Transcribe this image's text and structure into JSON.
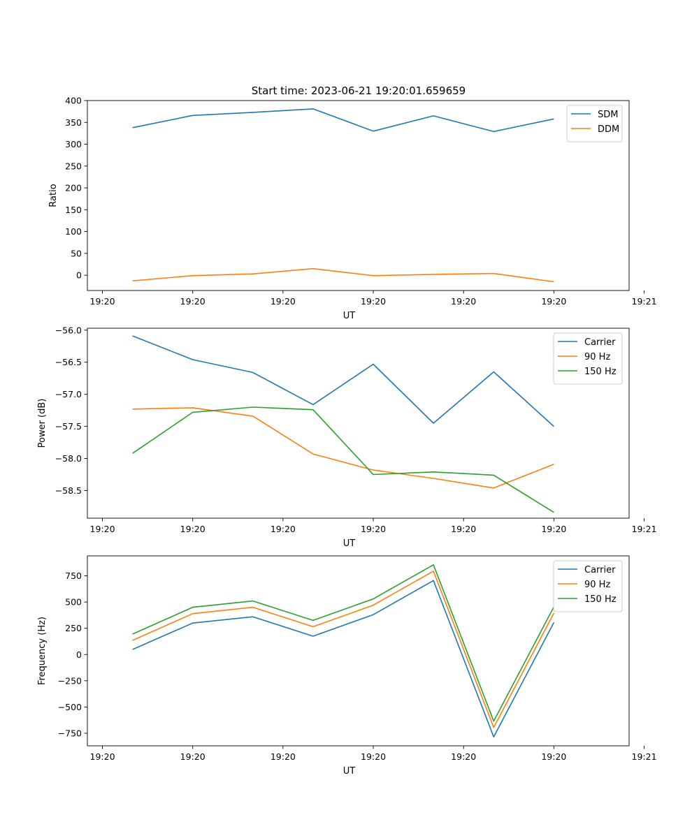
{
  "figure_title": "Start time: 2023-06-21 19:20:01.659659",
  "colors": {
    "blue": "#1f77b4",
    "orange": "#ff7f0e",
    "green": "#2ca02c"
  },
  "chart_data": [
    {
      "type": "line",
      "title": "Start time: 2023-06-21 19:20:01.659659",
      "xlabel": "UT",
      "ylabel": "Ratio",
      "x": [
        1,
        2,
        3,
        4,
        5,
        6,
        7,
        8
      ],
      "xlim": [
        0.25,
        9.25
      ],
      "x_ticks": [
        {
          "value": 0.5,
          "label": "19:20"
        },
        {
          "value": 2,
          "label": "19:20"
        },
        {
          "value": 3.5,
          "label": "19:20"
        },
        {
          "value": 5,
          "label": "19:20"
        },
        {
          "value": 6.5,
          "label": "19:20"
        },
        {
          "value": 8,
          "label": "19:20"
        },
        {
          "value": 9.5,
          "label": "19:21"
        }
      ],
      "ylim": [
        -35,
        400
      ],
      "y_ticks": [
        0,
        50,
        100,
        150,
        200,
        250,
        300,
        350,
        400
      ],
      "y_tick_labels": [
        "0",
        "50",
        "100",
        "150",
        "200",
        "250",
        "300",
        "350",
        "400"
      ],
      "grid": false,
      "legend_position": "top-right",
      "series": [
        {
          "name": "SDM",
          "color": "#1f77b4",
          "values": [
            338,
            366,
            373,
            381,
            330,
            365,
            329,
            358
          ]
        },
        {
          "name": "DDM",
          "color": "#ff7f0e",
          "values": [
            -13,
            -1,
            3,
            15,
            -1,
            2,
            4,
            -15
          ]
        }
      ]
    },
    {
      "type": "line",
      "xlabel": "UT",
      "ylabel": "Power (dB)",
      "x": [
        1,
        2,
        3,
        4,
        5,
        6,
        7,
        8
      ],
      "xlim": [
        0.25,
        9.25
      ],
      "x_ticks": [
        {
          "value": 0.5,
          "label": "19:20"
        },
        {
          "value": 2,
          "label": "19:20"
        },
        {
          "value": 3.5,
          "label": "19:20"
        },
        {
          "value": 5,
          "label": "19:20"
        },
        {
          "value": 6.5,
          "label": "19:20"
        },
        {
          "value": 8,
          "label": "19:20"
        },
        {
          "value": 9.5,
          "label": "19:21"
        }
      ],
      "ylim": [
        -58.93,
        -55.97
      ],
      "y_ticks": [
        -58.5,
        -58.0,
        -57.5,
        -57.0,
        -56.5,
        -56.0
      ],
      "y_tick_labels": [
        "−58.5",
        "−58.0",
        "−57.5",
        "−57.0",
        "−56.5",
        "−56.0"
      ],
      "grid": false,
      "legend_position": "top-right",
      "series": [
        {
          "name": "Carrier",
          "color": "#1f77b4",
          "values": [
            -56.09,
            -56.46,
            -56.66,
            -57.16,
            -56.53,
            -57.45,
            -56.65,
            -57.5
          ]
        },
        {
          "name": "90 Hz",
          "color": "#ff7f0e",
          "values": [
            -57.23,
            -57.21,
            -57.34,
            -57.93,
            -58.18,
            -58.31,
            -58.46,
            -58.09
          ]
        },
        {
          "name": "150 Hz",
          "color": "#2ca02c",
          "values": [
            -57.92,
            -57.28,
            -57.2,
            -57.24,
            -58.25,
            -58.21,
            -58.26,
            -58.84
          ]
        }
      ]
    },
    {
      "type": "line",
      "xlabel": "UT",
      "ylabel": "Frequency (Hz)",
      "x": [
        1,
        2,
        3,
        4,
        5,
        6,
        7,
        8
      ],
      "xlim": [
        0.25,
        9.25
      ],
      "x_ticks": [
        {
          "value": 0.5,
          "label": "19:20"
        },
        {
          "value": 2,
          "label": "19:20"
        },
        {
          "value": 3.5,
          "label": "19:20"
        },
        {
          "value": 5,
          "label": "19:20"
        },
        {
          "value": 6.5,
          "label": "19:20"
        },
        {
          "value": 8,
          "label": "19:20"
        },
        {
          "value": 9.5,
          "label": "19:21"
        }
      ],
      "ylim": [
        -870,
        940
      ],
      "y_ticks": [
        -750,
        -500,
        -250,
        0,
        250,
        500,
        750
      ],
      "y_tick_labels": [
        "−750",
        "−500",
        "−250",
        "0",
        "250",
        "500",
        "750"
      ],
      "grid": false,
      "legend_position": "top-right",
      "series": [
        {
          "name": "Carrier",
          "color": "#1f77b4",
          "values": [
            48,
            300,
            360,
            175,
            380,
            705,
            -785,
            305
          ]
        },
        {
          "name": "90 Hz",
          "color": "#ff7f0e",
          "values": [
            135,
            390,
            450,
            265,
            470,
            795,
            -695,
            395
          ]
        },
        {
          "name": "150 Hz",
          "color": "#2ca02c",
          "values": [
            195,
            450,
            510,
            325,
            530,
            855,
            -635,
            455
          ]
        }
      ]
    }
  ]
}
